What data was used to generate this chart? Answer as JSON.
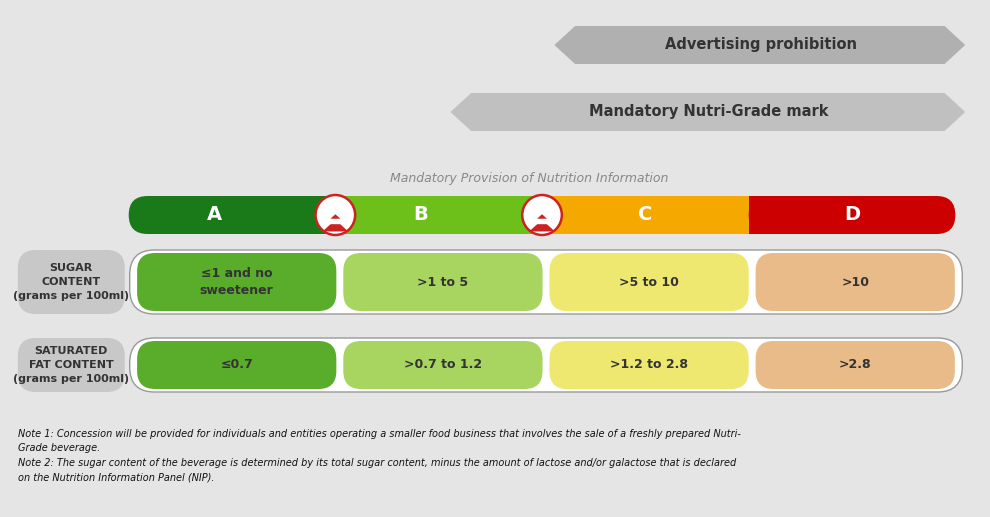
{
  "bg_color": "#e5e5e5",
  "title_provision": "Mandatory Provision of Nutrition Information",
  "arrow1_text": "Advertising prohibition",
  "arrow2_text": "Mandatory Nutri-Grade mark",
  "grade_labels": [
    "A",
    "B",
    "C",
    "D"
  ],
  "grade_colors": [
    "#1a7a1a",
    "#6dbf1a",
    "#f5a800",
    "#cc0000"
  ],
  "sugar_label": "SUGAR\nCONTENT\n(grams per 100ml)",
  "sugar_values": [
    "≤1 and no\nsweetener",
    ">1 to 5",
    ">5 to 10",
    ">10"
  ],
  "sugar_colors": [
    "#5aad2a",
    "#a8d460",
    "#eee870",
    "#e8bb88"
  ],
  "fat_label": "SATURATED\nFAT CONTENT\n(grams per 100ml)",
  "fat_values": [
    "≤0.7",
    ">0.7 to 1.2",
    ">1.2 to 2.8",
    ">2.8"
  ],
  "fat_colors": [
    "#5aad2a",
    "#a8d460",
    "#eee870",
    "#e8bb88"
  ],
  "note1": "Note 1: Concession will be provided for individuals and entities operating a smaller food business that involves the sale of a freshly prepared Nutri-\nGrade beverage.",
  "note2": "Note 2: The sugar content of the beverage is determined by its total sugar content, minus the amount of lactose and/or galactose that is declared\non the Nutrition Information Panel (NIP).",
  "arrow_gray1": "#b0b0b0",
  "arrow_gray2": "#c0c0c0",
  "label_box_color": "#c8c8c8",
  "outer_border_color": "#999999",
  "white": "#ffffff"
}
